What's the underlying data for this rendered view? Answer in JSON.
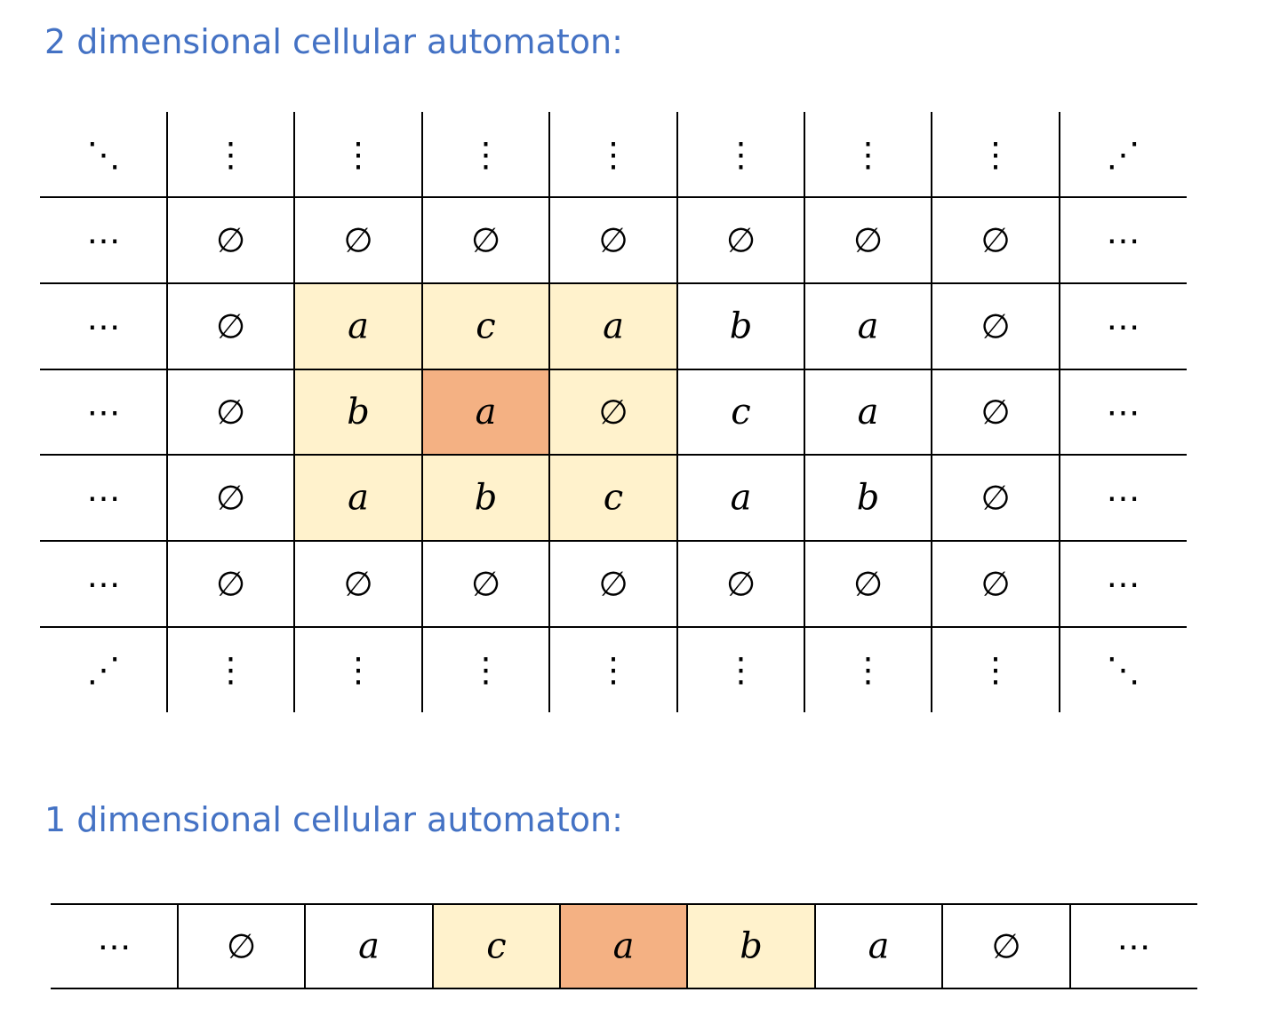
{
  "colors": {
    "heading": "#4472C4",
    "highlight_center": "#F4B183",
    "highlight_neighbor": "#FFF2CC",
    "line": "#000000"
  },
  "headings": {
    "two_d": "2 dimensional cellular automaton:",
    "one_d": "1 dimensional cellular automaton:"
  },
  "grid_2d": {
    "rows": [
      [
        "⋱",
        "⋮",
        "⋮",
        "⋮",
        "⋮",
        "⋮",
        "⋮",
        "⋮",
        "⋰"
      ],
      [
        "⋯",
        "∅",
        "∅",
        "∅",
        "∅",
        "∅",
        "∅",
        "∅",
        "⋯"
      ],
      [
        "⋯",
        "∅",
        "a",
        "c",
        "a",
        "b",
        "a",
        "∅",
        "⋯"
      ],
      [
        "⋯",
        "∅",
        "b",
        "a",
        "∅",
        "c",
        "a",
        "∅",
        "⋯"
      ],
      [
        "⋯",
        "∅",
        "a",
        "b",
        "c",
        "a",
        "b",
        "∅",
        "⋯"
      ],
      [
        "⋯",
        "∅",
        "∅",
        "∅",
        "∅",
        "∅",
        "∅",
        "∅",
        "⋯"
      ],
      [
        "⋰",
        "⋮",
        "⋮",
        "⋮",
        "⋮",
        "⋮",
        "⋮",
        "⋮",
        "⋱"
      ]
    ],
    "highlight": [
      [
        "",
        "",
        "",
        "",
        "",
        "",
        "",
        "",
        ""
      ],
      [
        "",
        "",
        "",
        "",
        "",
        "",
        "",
        "",
        ""
      ],
      [
        "",
        "",
        "neighbor",
        "neighbor",
        "neighbor",
        "",
        "",
        "",
        ""
      ],
      [
        "",
        "",
        "neighbor",
        "center",
        "neighbor",
        "",
        "",
        "",
        ""
      ],
      [
        "",
        "",
        "neighbor",
        "neighbor",
        "neighbor",
        "",
        "",
        "",
        ""
      ],
      [
        "",
        "",
        "",
        "",
        "",
        "",
        "",
        "",
        ""
      ],
      [
        "",
        "",
        "",
        "",
        "",
        "",
        "",
        "",
        ""
      ]
    ]
  },
  "grid_1d": {
    "cells": [
      "⋯",
      "∅",
      "a",
      "c",
      "a",
      "b",
      "a",
      "∅",
      "⋯"
    ],
    "highlight": [
      "",
      "",
      "",
      "neighbor",
      "center",
      "neighbor",
      "",
      "",
      ""
    ]
  }
}
